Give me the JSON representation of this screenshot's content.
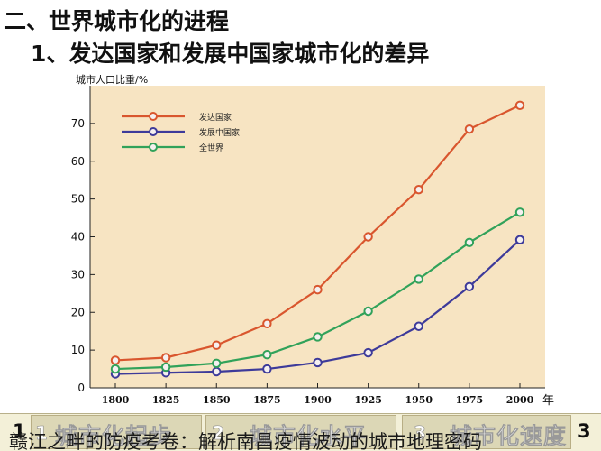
{
  "heading": {
    "main": "二、世界城市化的进程",
    "sub": "1、发达国家和发展中国家城市化的差异"
  },
  "colors": {
    "plot_background": "#f7e4c2",
    "developed": "#d9562e",
    "developing": "#3d3a9a",
    "world": "#31a25a"
  },
  "chart_data": {
    "type": "line",
    "ylabel": "城市人口比重/%",
    "xlabel": "年",
    "x": [
      1800,
      1825,
      1850,
      1875,
      1900,
      1925,
      1950,
      1975,
      2000
    ],
    "ylim": [
      0,
      80
    ],
    "yticks": [
      0,
      10,
      20,
      30,
      40,
      50,
      60,
      70
    ],
    "grid": false,
    "legend_position": "top-left",
    "series": [
      {
        "name": "发达国家",
        "color_key": "developed",
        "values": [
          7.3,
          8.0,
          11.3,
          17.0,
          26.0,
          40.0,
          52.5,
          68.5,
          74.8
        ]
      },
      {
        "name": "发展中国家",
        "color_key": "developing",
        "values": [
          3.7,
          4.0,
          4.3,
          5.0,
          6.7,
          9.3,
          16.3,
          26.8,
          39.2
        ]
      },
      {
        "name": "全世界",
        "color_key": "world",
        "values": [
          5.0,
          5.5,
          6.5,
          8.8,
          13.5,
          20.3,
          28.8,
          38.5,
          46.5
        ]
      }
    ]
  },
  "bottom": {
    "tabs": [
      {
        "number": "1",
        "label": "城市化起步"
      },
      {
        "number": "2",
        "label": "城市化水平"
      },
      {
        "number": "3",
        "label": "城市化速度"
      }
    ],
    "left_number": "1",
    "right_number": "3",
    "caption": "赣江之畔的防疫考卷：解析南昌疫情波动的城市地理密码"
  }
}
